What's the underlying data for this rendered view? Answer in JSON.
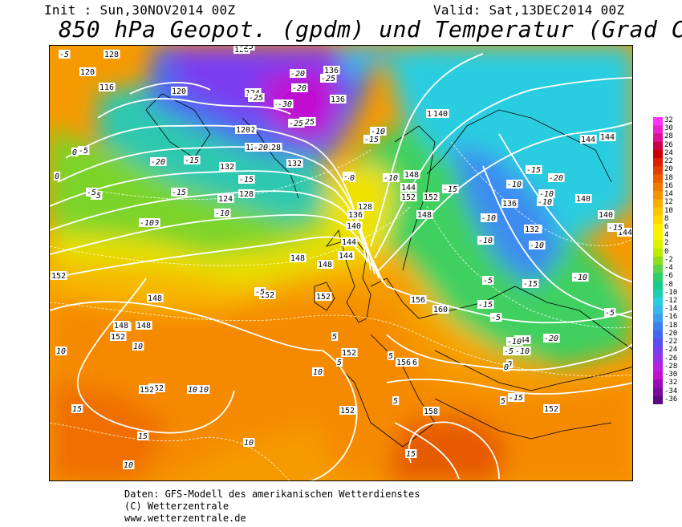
{
  "header": {
    "init": "Init : Sun,30NOV2014 00Z",
    "valid": "Valid: Sat,13DEC2014 00Z",
    "title": "850 hPa Geopot. (gpdm) und Temperatur (Grad C)"
  },
  "legend": {
    "values": [
      "32",
      "30",
      "28",
      "26",
      "24",
      "22",
      "20",
      "18",
      "16",
      "14",
      "12",
      "10",
      "8",
      "6",
      "4",
      "2",
      "0",
      "-2",
      "-4",
      "-6",
      "-8",
      "-10",
      "-12",
      "-14",
      "-16",
      "-18",
      "-20",
      "-22",
      "-24",
      "-26",
      "-28",
      "-30",
      "-32",
      "-34",
      "-36"
    ],
    "colors": [
      "#ff33ff",
      "#ee22cc",
      "#dd1199",
      "#cc0044",
      "#cc0000",
      "#dd2200",
      "#e63d00",
      "#ee5c00",
      "#f27a00",
      "#f59400",
      "#f8ae00",
      "#fbc400",
      "#fdd900",
      "#ffee00",
      "#f5f500",
      "#dff200",
      "#bdea00",
      "#8fde1a",
      "#5ad44a",
      "#2fce6a",
      "#1acc8a",
      "#1ad0b0",
      "#2acde0",
      "#38b8f0",
      "#3c9cf0",
      "#3c7ff0",
      "#4466f0",
      "#5a4ef0",
      "#7a3ef0",
      "#9a2ee8",
      "#b81ee0",
      "#c010d0",
      "#9a0ab8",
      "#7a0aa0",
      "#5a0a80"
    ]
  },
  "map_labels": {
    "geopotential": [
      "128",
      "128",
      "120",
      "116",
      "120",
      "124",
      "132",
      "132",
      "136",
      "136",
      "120",
      "124",
      "128",
      "128",
      "124",
      "132",
      "128",
      "136",
      "140",
      "148",
      "152",
      "152",
      "148",
      "152",
      "152",
      "152",
      "152",
      "156",
      "152",
      "156",
      "144",
      "144",
      "140",
      "152",
      "152",
      "152",
      "148",
      "144",
      "148",
      "136",
      "140",
      "144",
      "136",
      "132",
      "140",
      "144",
      "148",
      "148",
      "148",
      "152",
      "156",
      "160",
      "158",
      "140",
      "144",
      "152",
      "144"
    ],
    "temperature": [
      "-5",
      "-25",
      "-30",
      "-25",
      "-25",
      "-20",
      "-25",
      "-20",
      "-30",
      "-25",
      "-20",
      "-15",
      "-15",
      "-20",
      "-15",
      "-10",
      "-5",
      "-5",
      "-5",
      "0",
      "0",
      "-10",
      "-5",
      "-10",
      "-10",
      "-15",
      "-10",
      "-15",
      "-10",
      "-15",
      "-20",
      "-10",
      "-10",
      "-5",
      "-5",
      "-10",
      "-15",
      "-15",
      "-10",
      "-10",
      "-5",
      "0",
      "5",
      "5",
      "5",
      "10",
      "10",
      "10",
      "10",
      "15",
      "15",
      "10",
      "10",
      "15",
      "10",
      "5",
      "5",
      "0",
      "-5",
      "-10",
      "-15",
      "-20",
      "-15",
      "-10",
      "-5",
      "-10",
      "0",
      "-5"
    ]
  },
  "footer": {
    "line1": "Daten: GFS-Modell des amerikanischen Wetterdienstes",
    "line2": "(C) Wetterzentrale",
    "line3": "www.wetterzentrale.de"
  }
}
